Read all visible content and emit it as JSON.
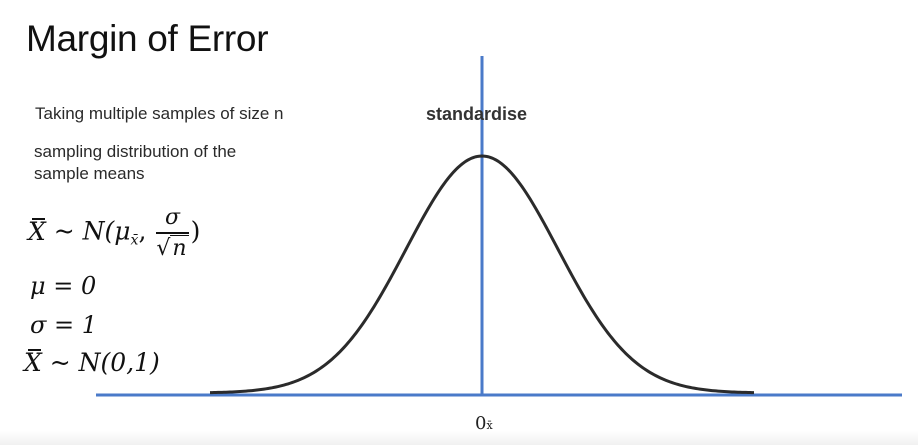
{
  "title": "Margin of Error",
  "text": {
    "line1": "Taking multiple samples of size n",
    "line2": "sampling distribution of the",
    "line3": "sample means"
  },
  "axis_label": "standardise",
  "formulas": {
    "distribution": {
      "lhs": "X",
      "tilde": " ~ ",
      "family": "N(μ",
      "sub": "x̄",
      "comma": ", ",
      "numerator": "σ",
      "denominator": "n",
      "close": ")"
    },
    "mu": "μ = 0",
    "sigma": "σ = 1",
    "standard": {
      "lhs": "X",
      "rest": " ~ N(0,1)"
    }
  },
  "tick": {
    "value": "0",
    "subscript": "x̄"
  },
  "colors": {
    "axis": "#4a7ac9",
    "curve": "#2b2b2b"
  }
}
